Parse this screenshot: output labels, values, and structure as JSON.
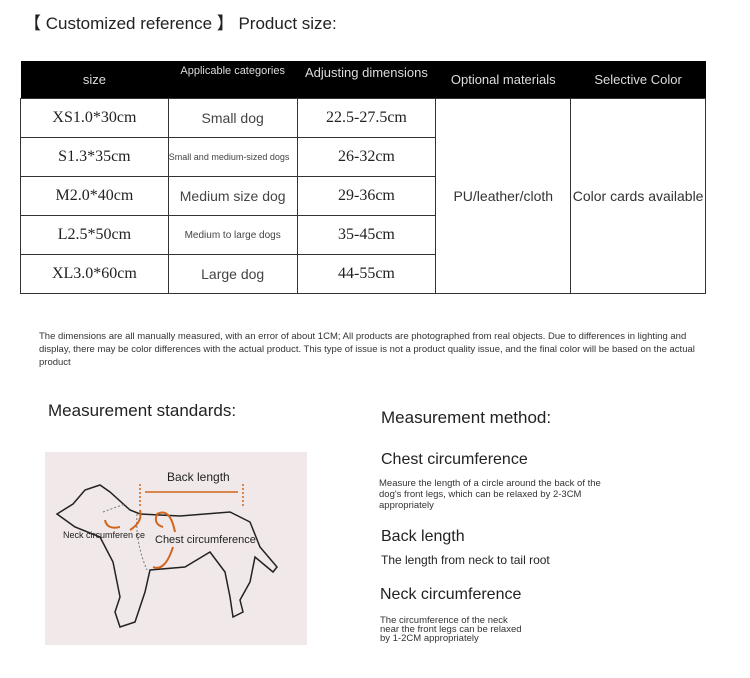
{
  "title": "【 Customized reference 】 Product size:",
  "table": {
    "headers": [
      "size",
      "Applicable categories",
      "Adjusting dimensions",
      "Optional materials",
      "Selective Color"
    ],
    "rows": [
      {
        "size": "XS1.0*30cm",
        "category": "Small dog",
        "dimensions": "22.5-27.5cm"
      },
      {
        "size": "S1.3*35cm",
        "category": "Small and medium-sized dogs",
        "dimensions": "26-32cm"
      },
      {
        "size": "M2.0*40cm",
        "category": "Medium size dog",
        "dimensions": "29-36cm"
      },
      {
        "size": "L2.5*50cm",
        "category": "Medium to large dogs",
        "dimensions": "35-45cm"
      },
      {
        "size": "XL3.0*60cm",
        "category": "Large dog",
        "dimensions": "44-55cm"
      }
    ],
    "material": "PU/leather/cloth",
    "color": "Color cards available"
  },
  "note": "The dimensions are all manually measured, with an error of about 1CM; All products are photographed from real objects. Due to differences in lighting and display, there may be color differences with the actual product. This type of issue is not a product quality issue, and the final color will be based on the actual product",
  "measurement_standards": {
    "title": "Measurement standards:",
    "labels": {
      "back": "Back length",
      "neck": "Neck circumferen ce",
      "chest": "Chest circumference"
    },
    "arrow_color": "#d0661e"
  },
  "measurement_method": {
    "title": "Measurement method:",
    "items": [
      {
        "heading": "Chest circumference",
        "text": "Measure the length of a circle around the back of the dog's front legs, which can be relaxed by 2-3CM appropriately"
      },
      {
        "heading": "Back length",
        "text": "The length from neck to tail root"
      },
      {
        "heading": "Neck circumference",
        "text": "The circumference of the neck near the front legs can be relaxed by 1-2CM appropriately"
      }
    ]
  }
}
